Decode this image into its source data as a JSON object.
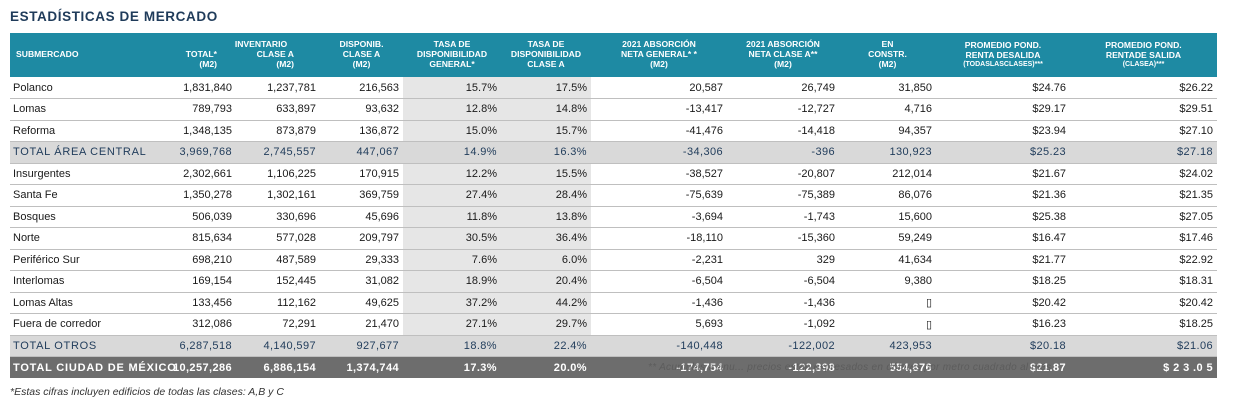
{
  "title": "ESTADÍSTICAS DE MERCADO",
  "headers": {
    "submercado": "SUBMERCADO",
    "inventario": "INVENTARIO",
    "total": "TOTAL*",
    "clase_a": "CLASE A",
    "m2": "(M2)",
    "disponib_l1": "DISPONIB.",
    "disponib_l2": "CLASE A",
    "tasa_gen_l1": "TASA DE",
    "tasa_gen_l2": "DISPONIBILIDAD",
    "tasa_gen_l3": "GENERAL*",
    "tasa_a_l1": "TASA DE",
    "tasa_a_l2": "DISPONIBILIDAD",
    "tasa_a_l3": "CLASE A",
    "abs_gen_l1": "2021 ABSORCIÓN",
    "abs_gen_l2": "NETA GENERAL* *",
    "abs_a_l1": "2021 ABSORCIÓN",
    "abs_a_l2": "NETA CLASE A**",
    "constr_l1": "EN",
    "constr_l2": "CONSTR.",
    "renta_des_l1": "PROMEDIO POND.",
    "renta_des_l2": "RENTA DESALIDA",
    "renta_des_l3": "(TODASLASCLASES)***",
    "renta_sal_l1": "PROMEDIO POND.",
    "renta_sal_l2": "RENTADE SALIDA",
    "renta_sal_l3": "(CLASEA)***"
  },
  "rows": [
    {
      "name": "Polanco",
      "total": "1,831,840",
      "clase_a": "1,237,781",
      "disp": "216,563",
      "tasa_gen": "15.7%",
      "tasa_a": "17.5%",
      "abs_gen": "20,587",
      "abs_a": "26,749",
      "constr": "31,850",
      "renta_des": "$24.76",
      "renta_sal": "$26.22"
    },
    {
      "name": "Lomas",
      "total": "789,793",
      "clase_a": "633,897",
      "disp": "93,632",
      "tasa_gen": "12.8%",
      "tasa_a": "14.8%",
      "abs_gen": "-13,417",
      "abs_a": "-12,727",
      "constr": "4,716",
      "renta_des": "$29.17",
      "renta_sal": "$29.51"
    },
    {
      "name": "Reforma",
      "total": "1,348,135",
      "clase_a": "873,879",
      "disp": "136,872",
      "tasa_gen": "15.0%",
      "tasa_a": "15.7%",
      "abs_gen": "-41,476",
      "abs_a": "-14,418",
      "constr": "94,357",
      "renta_des": "$23.94",
      "renta_sal": "$27.10"
    },
    {
      "name": "TOTAL ÁREA CENTRAL",
      "total": "3,969,768",
      "clase_a": "2,745,557",
      "disp": "447,067",
      "tasa_gen": "14.9%",
      "tasa_a": "16.3%",
      "abs_gen": "-34,306",
      "abs_a": "-396",
      "constr": "130,923",
      "renta_des": "$25.23",
      "renta_sal": "$27.18",
      "kind": "total"
    },
    {
      "name": "Insurgentes",
      "total": "2,302,661",
      "clase_a": "1,106,225",
      "disp": "170,915",
      "tasa_gen": "12.2%",
      "tasa_a": "15.5%",
      "abs_gen": "-38,527",
      "abs_a": "-20,807",
      "constr": "212,014",
      "renta_des": "$21.67",
      "renta_sal": "$24.02"
    },
    {
      "name": "Santa Fe",
      "total": "1,350,278",
      "clase_a": "1,302,161",
      "disp": "369,759",
      "tasa_gen": "27.4%",
      "tasa_a": "28.4%",
      "abs_gen": "-75,639",
      "abs_a": "-75,389",
      "constr": "86,076",
      "renta_des": "$21.36",
      "renta_sal": "$21.35"
    },
    {
      "name": "Bosques",
      "total": "506,039",
      "clase_a": "330,696",
      "disp": "45,696",
      "tasa_gen": "11.8%",
      "tasa_a": "13.8%",
      "abs_gen": "-3,694",
      "abs_a": "-1,743",
      "constr": "15,600",
      "renta_des": "$25.38",
      "renta_sal": "$27.05"
    },
    {
      "name": "Norte",
      "total": "815,634",
      "clase_a": "577,028",
      "disp": "209,797",
      "tasa_gen": "30.5%",
      "tasa_a": "36.4%",
      "abs_gen": "-18,110",
      "abs_a": "-15,360",
      "constr": "59,249",
      "renta_des": "$16.47",
      "renta_sal": "$17.46"
    },
    {
      "name": "Periférico Sur",
      "total": "698,210",
      "clase_a": "487,589",
      "disp": "29,333",
      "tasa_gen": "7.6%",
      "tasa_a": "6.0%",
      "abs_gen": "-2,231",
      "abs_a": "329",
      "constr": "41,634",
      "renta_des": "$21.77",
      "renta_sal": "$22.92"
    },
    {
      "name": "Interlomas",
      "total": "169,154",
      "clase_a": "152,445",
      "disp": "31,082",
      "tasa_gen": "18.9%",
      "tasa_a": "20.4%",
      "abs_gen": "-6,504",
      "abs_a": "-6,504",
      "constr": "9,380",
      "renta_des": "$18.25",
      "renta_sal": "$18.31"
    },
    {
      "name": "Lomas Altas",
      "total": "133,456",
      "clase_a": "112,162",
      "disp": "49,625",
      "tasa_gen": "37.2%",
      "tasa_a": "44.2%",
      "abs_gen": "-1,436",
      "abs_a": "-1,436",
      "constr": "▯",
      "renta_des": "$20.42",
      "renta_sal": "$20.42"
    },
    {
      "name": "Fuera de corredor",
      "total": "312,086",
      "clase_a": "72,291",
      "disp": "21,470",
      "tasa_gen": "27.1%",
      "tasa_a": "29.7%",
      "abs_gen": "5,693",
      "abs_a": "-1,092",
      "constr": "▯",
      "renta_des": "$16.23",
      "renta_sal": "$18.25"
    },
    {
      "name": "TOTAL OTROS",
      "total": "6,287,518",
      "clase_a": "4,140,597",
      "disp": "927,677",
      "tasa_gen": "18.8%",
      "tasa_a": "22.4%",
      "abs_gen": "-140,448",
      "abs_a": "-122,002",
      "constr": "423,953",
      "renta_des": "$20.18",
      "renta_sal": "$21.06",
      "kind": "total"
    },
    {
      "name": "TOTAL CIUDAD DE MÉXICO",
      "total": "10,257,286",
      "clase_a": "6,886,154",
      "disp": "1,374,744",
      "tasa_gen": "17.3%",
      "tasa_a": "20.0%",
      "abs_gen": "-174,754",
      "abs_a": "-122,398",
      "constr": "554,876",
      "renta_des": "$21.87",
      "renta_sal": "$ 2 3 .0 5",
      "kind": "grand"
    }
  ],
  "overlay_text": "** Acumulas a anu... precios están expresados en dólares por metro cuadrado al mes",
  "footnote": "*Estas cifras incluyen edificios de todas las clases: A,B y C"
}
